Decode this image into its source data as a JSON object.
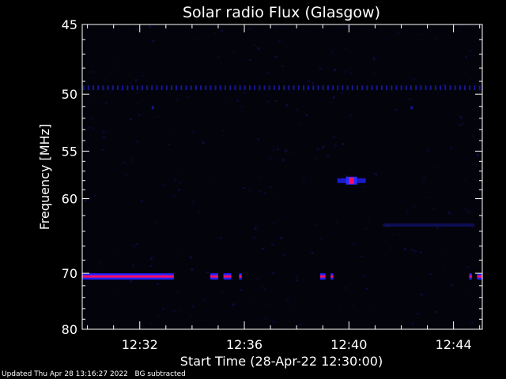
{
  "chart_data": {
    "type": "heatmap",
    "title": "Solar radio Flux (Glasgow)",
    "xlabel": "Start Time (28-Apr-22 12:30:00)",
    "ylabel": "Frequency [MHz]",
    "x_range_minutes": [
      29.8,
      45.1
    ],
    "x_ticks": [
      {
        "value": 32,
        "label": "12:32"
      },
      {
        "value": 36,
        "label": "12:36"
      },
      {
        "value": 40,
        "label": "12:40"
      },
      {
        "value": 44,
        "label": "12:44"
      }
    ],
    "y_range": [
      45,
      80
    ],
    "y_scale": "reciprocal",
    "y_ticks": [
      {
        "value": 45,
        "label": "45"
      },
      {
        "value": 50,
        "label": "50"
      },
      {
        "value": 55,
        "label": "55"
      },
      {
        "value": 60,
        "label": "60"
      },
      {
        "value": 70,
        "label": "70"
      },
      {
        "value": 80,
        "label": "80"
      }
    ],
    "colorscale": [
      "#000000",
      "#0a0a55",
      "#2020ff",
      "#ff1060"
    ],
    "features": [
      {
        "kind": "dashed-band",
        "freq": 49.5,
        "t_start": 29.8,
        "t_end": 45.1,
        "intensity": 0.55
      },
      {
        "kind": "band",
        "freq": 70.5,
        "t_start": 29.8,
        "t_end": 33.3,
        "intensity": 1.0
      },
      {
        "kind": "band",
        "freq": 70.5,
        "t_start": 34.7,
        "t_end": 35.0,
        "intensity": 1.0
      },
      {
        "kind": "band",
        "freq": 70.5,
        "t_start": 35.2,
        "t_end": 35.5,
        "intensity": 1.0
      },
      {
        "kind": "band",
        "freq": 70.5,
        "t_start": 35.8,
        "t_end": 35.9,
        "intensity": 1.0
      },
      {
        "kind": "band",
        "freq": 70.5,
        "t_start": 38.9,
        "t_end": 39.1,
        "intensity": 1.0
      },
      {
        "kind": "band",
        "freq": 70.5,
        "t_start": 39.3,
        "t_end": 39.4,
        "intensity": 1.0
      },
      {
        "kind": "band",
        "freq": 70.5,
        "t_start": 44.6,
        "t_end": 44.7,
        "intensity": 1.0
      },
      {
        "kind": "band",
        "freq": 70.5,
        "t_start": 44.9,
        "t_end": 45.1,
        "intensity": 1.0
      },
      {
        "kind": "band",
        "freq": 63.2,
        "t_start": 41.3,
        "t_end": 44.8,
        "intensity": 0.3
      },
      {
        "kind": "burst",
        "freq": 58.0,
        "t": 40.1,
        "intensity": 1.0
      },
      {
        "kind": "dot",
        "freq": 51.1,
        "t": 32.5,
        "intensity": 0.5
      },
      {
        "kind": "dot",
        "freq": 51.1,
        "t": 42.4,
        "intensity": 0.5
      }
    ]
  },
  "footer": {
    "updated": "Updated Thu Apr 28 13:16:27 2022",
    "note": "BG subtracted"
  }
}
